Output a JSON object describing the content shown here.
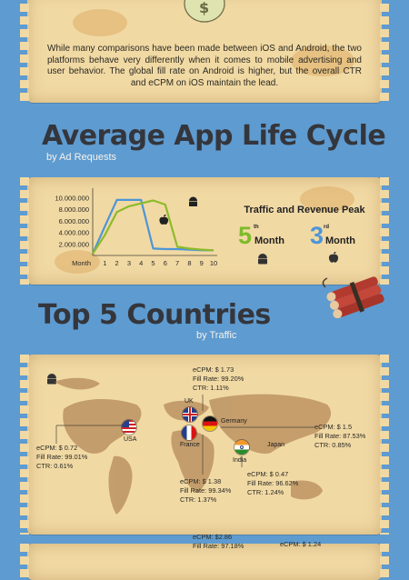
{
  "intro": {
    "text": "While many comparisons have been made between iOS and Android, the two platforms behave very differently when it comes to mobile advertising and user behavior. The global fill rate on Android is higher, but the overall CTR and eCPM on iOS maintain the lead."
  },
  "lifecycle": {
    "title": "Average App Life Cycle",
    "subtitle": "by Ad Requests",
    "peak_title": "Traffic and Revenue Peak",
    "android_peak": {
      "num": "5",
      "sup": "th",
      "word": "Month",
      "color": "#7dbb2a"
    },
    "ios_peak": {
      "num": "3",
      "sup": "rd",
      "word": "Month",
      "color": "#4d95d8"
    }
  },
  "chart_data": {
    "type": "line",
    "title": "Average App Life Cycle",
    "subtitle": "by Ad Requests",
    "x": [
      0,
      1,
      2,
      3,
      4,
      5,
      6,
      7,
      8,
      9,
      10
    ],
    "x_tick_labels": [
      "Month",
      "1",
      "2",
      "3",
      "4",
      "5",
      "6",
      "7",
      "8",
      "9",
      "10"
    ],
    "y_tick_labels": [
      "10.000.000",
      "8.000.000",
      "6.000.000",
      "4.000.000",
      "2.000.000"
    ],
    "y_ticks": [
      10000000,
      8000000,
      6000000,
      4000000,
      2000000
    ],
    "ylim": [
      0,
      11000000
    ],
    "series": [
      {
        "key": "ios",
        "color": "#4d95d8",
        "values": [
          300000,
          5000000,
          9600000,
          9600000,
          9600000,
          1200000,
          1100000,
          1100000,
          1000000,
          900000,
          900000
        ]
      },
      {
        "key": "android",
        "color": "#8dbb2a",
        "values": [
          300000,
          3500000,
          7500000,
          8500000,
          9000000,
          9500000,
          8800000,
          1500000,
          1200000,
          1000000,
          900000
        ]
      }
    ],
    "grid": false,
    "legend": "icons"
  },
  "countries": {
    "title": "Top 5 Countries",
    "subtitle": "by Traffic",
    "items": [
      {
        "name": "UK",
        "ecpm": "eCPM: $ 1.73",
        "fill": "Fill Rate: 99.20%",
        "ctr": "CTR: 1.11%"
      },
      {
        "name": "Germany",
        "ecpm": "eCPM: $ 1.5",
        "fill": "Fill Rate: 87.53%",
        "ctr": "CTR: 0.85%"
      },
      {
        "name": "USA",
        "ecpm": "eCPM: $ 0.72",
        "fill": "Fill Rate: 99.01%",
        "ctr": "CTR: 0.61%"
      },
      {
        "name": "France",
        "ecpm": "eCPM: $ 1.38",
        "fill": "Fill Rate: 99.34%",
        "ctr": "CTR: 1.37%"
      },
      {
        "name": "India",
        "ecpm": "eCPM: $ 0.47",
        "fill": "Fill Rate: 96.62%",
        "ctr": "CTR: 1.24%"
      },
      {
        "name": "Japan"
      }
    ]
  },
  "next_panel": {
    "ecpm_1": "eCPM: $2.86",
    "fill_1": "Fill Rate: 97.18%",
    "ecpm_2": "eCPM: $ 1.24"
  }
}
